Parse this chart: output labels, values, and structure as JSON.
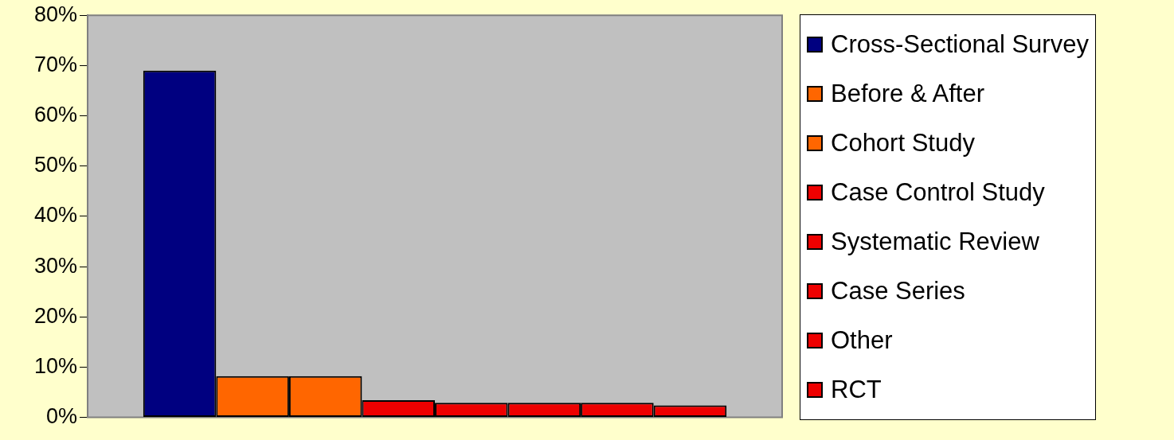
{
  "chart_data": {
    "type": "bar",
    "categories": [
      null
    ],
    "series": [
      {
        "name": "Cross-Sectional Survey",
        "color": "#000080",
        "values": [
          69
        ]
      },
      {
        "name": "Before & After",
        "color": "#ff6600",
        "values": [
          8.2
        ]
      },
      {
        "name": "Cohort Study",
        "color": "#ff6600",
        "values": [
          8.2
        ]
      },
      {
        "name": "Case Control Study",
        "color": "#ee0000",
        "values": [
          3.4
        ]
      },
      {
        "name": "Systematic Review",
        "color": "#ee0000",
        "values": [
          2.9
        ]
      },
      {
        "name": "Case Series",
        "color": "#ee0000",
        "values": [
          2.9
        ]
      },
      {
        "name": "Other",
        "color": "#ee0000",
        "values": [
          2.9
        ]
      },
      {
        "name": "RCT",
        "color": "#ee0000",
        "values": [
          2.4
        ]
      }
    ],
    "ylim": [
      0,
      80
    ],
    "yticks": [
      {
        "value": 0,
        "label": "0%"
      },
      {
        "value": 10,
        "label": "10%"
      },
      {
        "value": 20,
        "label": "20%"
      },
      {
        "value": 30,
        "label": "30%"
      },
      {
        "value": 40,
        "label": "40%"
      },
      {
        "value": 50,
        "label": "50%"
      },
      {
        "value": 60,
        "label": "60%"
      },
      {
        "value": 70,
        "label": "70%"
      },
      {
        "value": 80,
        "label": "80%"
      }
    ],
    "legend": "right"
  }
}
